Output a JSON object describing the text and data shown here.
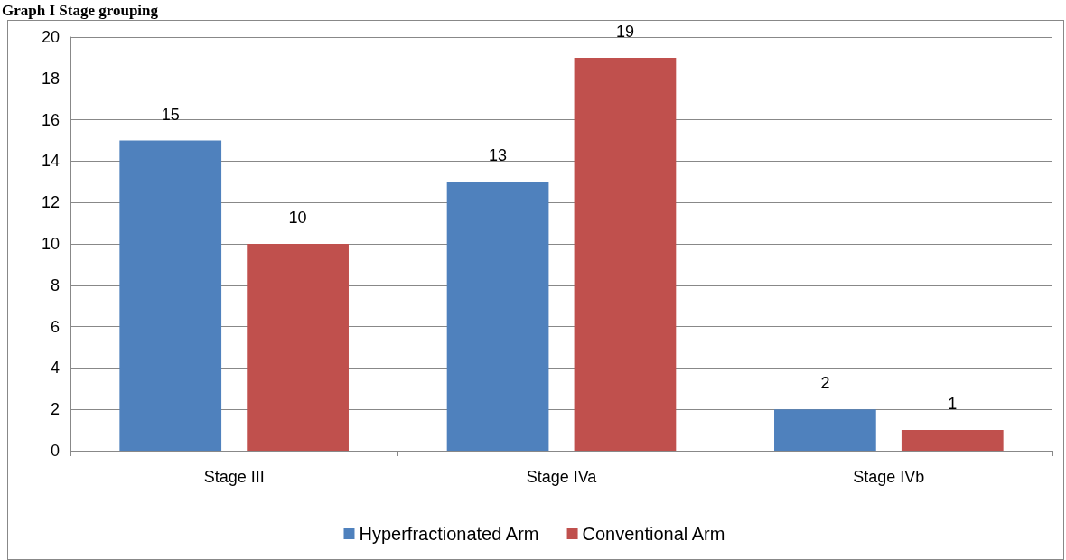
{
  "chart_data": {
    "type": "bar",
    "title": "Graph I Stage grouping",
    "categories": [
      "Stage III",
      "Stage IVa",
      "Stage IVb"
    ],
    "series": [
      {
        "name": "Hyperfractionated Arm",
        "color": "#4f81bd",
        "values": [
          15,
          13,
          2
        ]
      },
      {
        "name": "Conventional Arm",
        "color": "#c0504d",
        "values": [
          10,
          19,
          1
        ]
      }
    ],
    "ylim": [
      0,
      20
    ],
    "yticks": [
      0,
      2,
      4,
      6,
      8,
      10,
      12,
      14,
      16,
      18,
      20
    ],
    "grid": "y",
    "legend": "bottom",
    "data_labels": true
  }
}
